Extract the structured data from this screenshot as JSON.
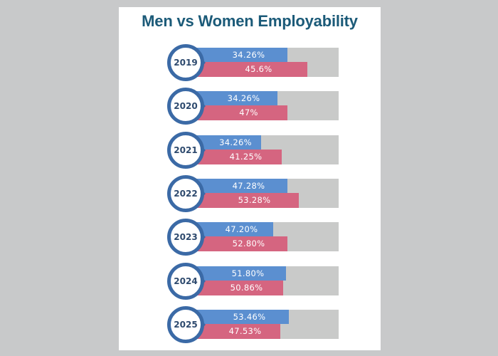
{
  "colors": {
    "men": "#5b8fd0",
    "women": "#d56580",
    "track": "#c9cac9",
    "badge_ring": "#3b6aa6",
    "title": "#1b5a78"
  },
  "chart_data": {
    "type": "bar",
    "title": "Men vs Women Employability",
    "categories": [
      "2019",
      "2020",
      "2021",
      "2022",
      "2023",
      "2024",
      "2025"
    ],
    "series": [
      {
        "name": "Men",
        "values": [
          34.26,
          34.26,
          34.26,
          47.28,
          47.2,
          51.8,
          53.46
        ],
        "labels": [
          "34.26%",
          "34.26%",
          "34.26%",
          "47.28%",
          "47.20%",
          "51.80%",
          "53.46%"
        ],
        "fill_fraction": [
          0.64,
          0.57,
          0.46,
          0.64,
          0.54,
          0.63,
          0.65
        ]
      },
      {
        "name": "Women",
        "values": [
          45.6,
          47,
          41.25,
          53.28,
          52.8,
          50.86,
          47.53
        ],
        "labels": [
          "45.6%",
          "47%",
          "41.25%",
          "53.28%",
          "52.80%",
          "50.86%",
          "47.53%"
        ],
        "fill_fraction": [
          0.78,
          0.64,
          0.6,
          0.72,
          0.64,
          0.61,
          0.59
        ]
      }
    ]
  }
}
